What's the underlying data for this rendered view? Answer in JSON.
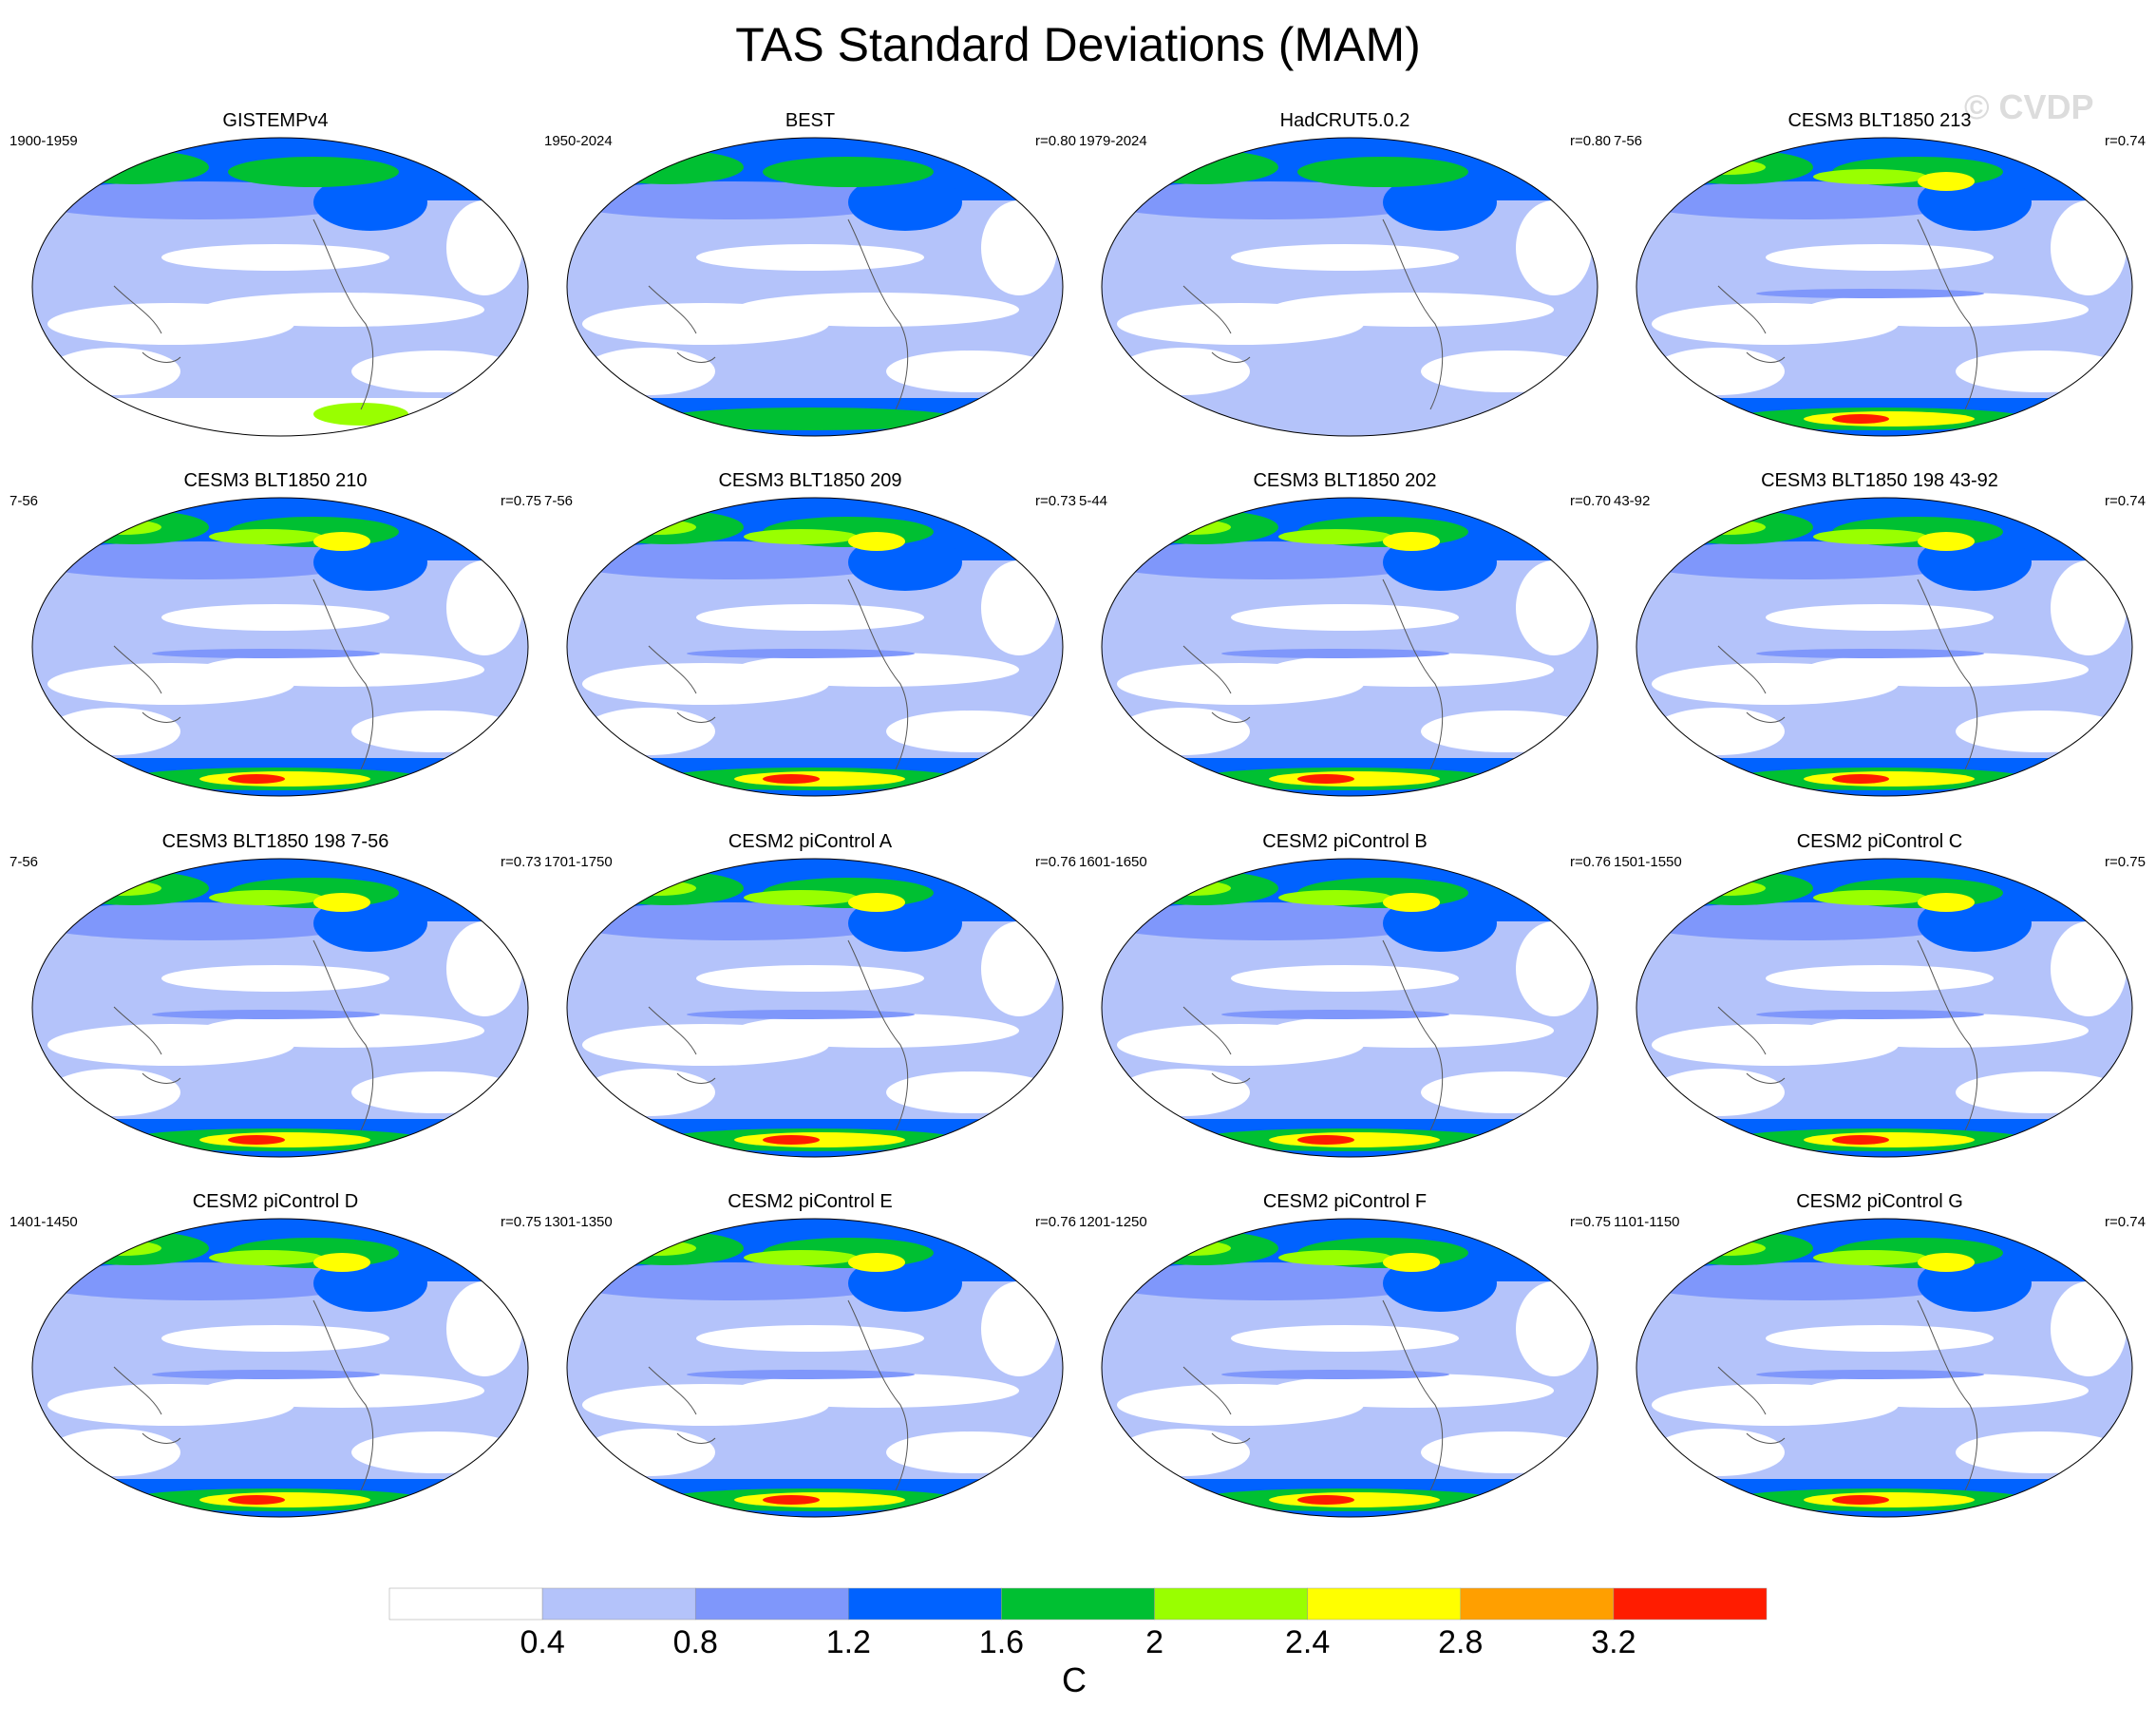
{
  "title": "TAS Standard Deviations (MAM)",
  "watermark": "© CVDP",
  "chart_data": {
    "type": "heatmap",
    "title": "TAS Standard Deviations (MAM)",
    "projection": "Robinson-style global maps, Pacific-centered",
    "panels": [
      {
        "title": "GISTEMPv4",
        "period": "1900-1959",
        "r": "",
        "kind": "obs"
      },
      {
        "title": "BEST",
        "period": "1950-2024",
        "r": "r=0.80",
        "kind": "obs"
      },
      {
        "title": "HadCRUT5.0.2",
        "period": "1979-2024",
        "r": "r=0.80",
        "kind": "obs"
      },
      {
        "title": "CESM3 BLT1850 213",
        "period": "7-56",
        "r": "r=0.74",
        "kind": "model"
      },
      {
        "title": "CESM3 BLT1850 210",
        "period": "7-56",
        "r": "r=0.75",
        "kind": "model"
      },
      {
        "title": "CESM3 BLT1850 209",
        "period": "7-56",
        "r": "r=0.73",
        "kind": "model"
      },
      {
        "title": "CESM3 BLT1850 202",
        "period": "5-44",
        "r": "r=0.70",
        "kind": "model"
      },
      {
        "title": "CESM3 BLT1850 198 43-92",
        "period": "43-92",
        "r": "r=0.74",
        "kind": "model"
      },
      {
        "title": "CESM3 BLT1850 198 7-56",
        "period": "7-56",
        "r": "r=0.73",
        "kind": "model"
      },
      {
        "title": "CESM2 piControl A",
        "period": "1701-1750",
        "r": "r=0.76",
        "kind": "model"
      },
      {
        "title": "CESM2 piControl B",
        "period": "1601-1650",
        "r": "r=0.76",
        "kind": "model"
      },
      {
        "title": "CESM2 piControl C",
        "period": "1501-1550",
        "r": "r=0.75",
        "kind": "model"
      },
      {
        "title": "CESM2 piControl D",
        "period": "1401-1450",
        "r": "r=0.75",
        "kind": "model"
      },
      {
        "title": "CESM2 piControl E",
        "period": "1301-1350",
        "r": "r=0.76",
        "kind": "model"
      },
      {
        "title": "CESM2 piControl F",
        "period": "1201-1250",
        "r": "r=0.75",
        "kind": "model"
      },
      {
        "title": "CESM2 piControl G",
        "period": "1101-1150",
        "r": "r=0.74",
        "kind": "model"
      }
    ],
    "colorbar": {
      "levels": [
        0.4,
        0.8,
        1.2,
        1.6,
        2,
        2.4,
        2.8,
        3.2
      ],
      "tick_labels": [
        "0.4",
        "0.8",
        "1.2",
        "1.6",
        "2",
        "2.4",
        "2.8",
        "3.2"
      ],
      "colors": [
        "#ffffff",
        "#b4c3fa",
        "#7f97fb",
        "#0062ff",
        "#00c032",
        "#99ff00",
        "#ffff00",
        "#ff9f00",
        "#ff1c00"
      ],
      "units": "C"
    }
  }
}
